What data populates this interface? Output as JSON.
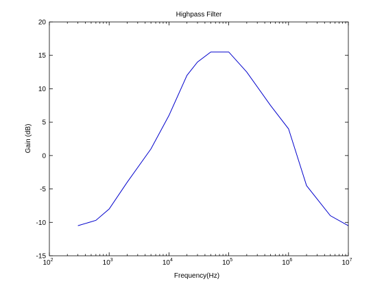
{
  "chart_data": {
    "type": "line",
    "title": "Highpass Filter",
    "xlabel": "Frequency(Hz)",
    "ylabel": "Gain (dB)",
    "xscale": "log",
    "xlim": [
      100,
      10000000
    ],
    "ylim": [
      -15,
      20
    ],
    "grid": false,
    "legend": "none",
    "x_ticks": [
      {
        "value": 100,
        "base": "10",
        "exp": "2"
      },
      {
        "value": 1000,
        "base": "10",
        "exp": "3"
      },
      {
        "value": 10000,
        "base": "10",
        "exp": "4"
      },
      {
        "value": 100000,
        "base": "10",
        "exp": "5"
      },
      {
        "value": 1000000,
        "base": "10",
        "exp": "6"
      },
      {
        "value": 10000000,
        "base": "10",
        "exp": "7"
      }
    ],
    "y_ticks": [
      {
        "value": -15,
        "label": "-15"
      },
      {
        "value": -10,
        "label": "-10"
      },
      {
        "value": -5,
        "label": "-5"
      },
      {
        "value": 0,
        "label": "0"
      },
      {
        "value": 5,
        "label": "5"
      },
      {
        "value": 10,
        "label": "10"
      },
      {
        "value": 15,
        "label": "15"
      },
      {
        "value": 20,
        "label": "20"
      }
    ],
    "series": [
      {
        "color": "#0000cc",
        "x": [
          300,
          600,
          1000,
          2000,
          5000,
          10000,
          20000,
          30000,
          50000,
          70000,
          100000,
          200000,
          500000,
          1000000,
          2000000,
          5000000,
          10000000
        ],
        "y": [
          -10.5,
          -9.7,
          -8,
          -4,
          1,
          6,
          12,
          14,
          15.5,
          15.5,
          15.5,
          12.5,
          7.5,
          4,
          -4.5,
          -9,
          -10.5
        ]
      }
    ]
  }
}
